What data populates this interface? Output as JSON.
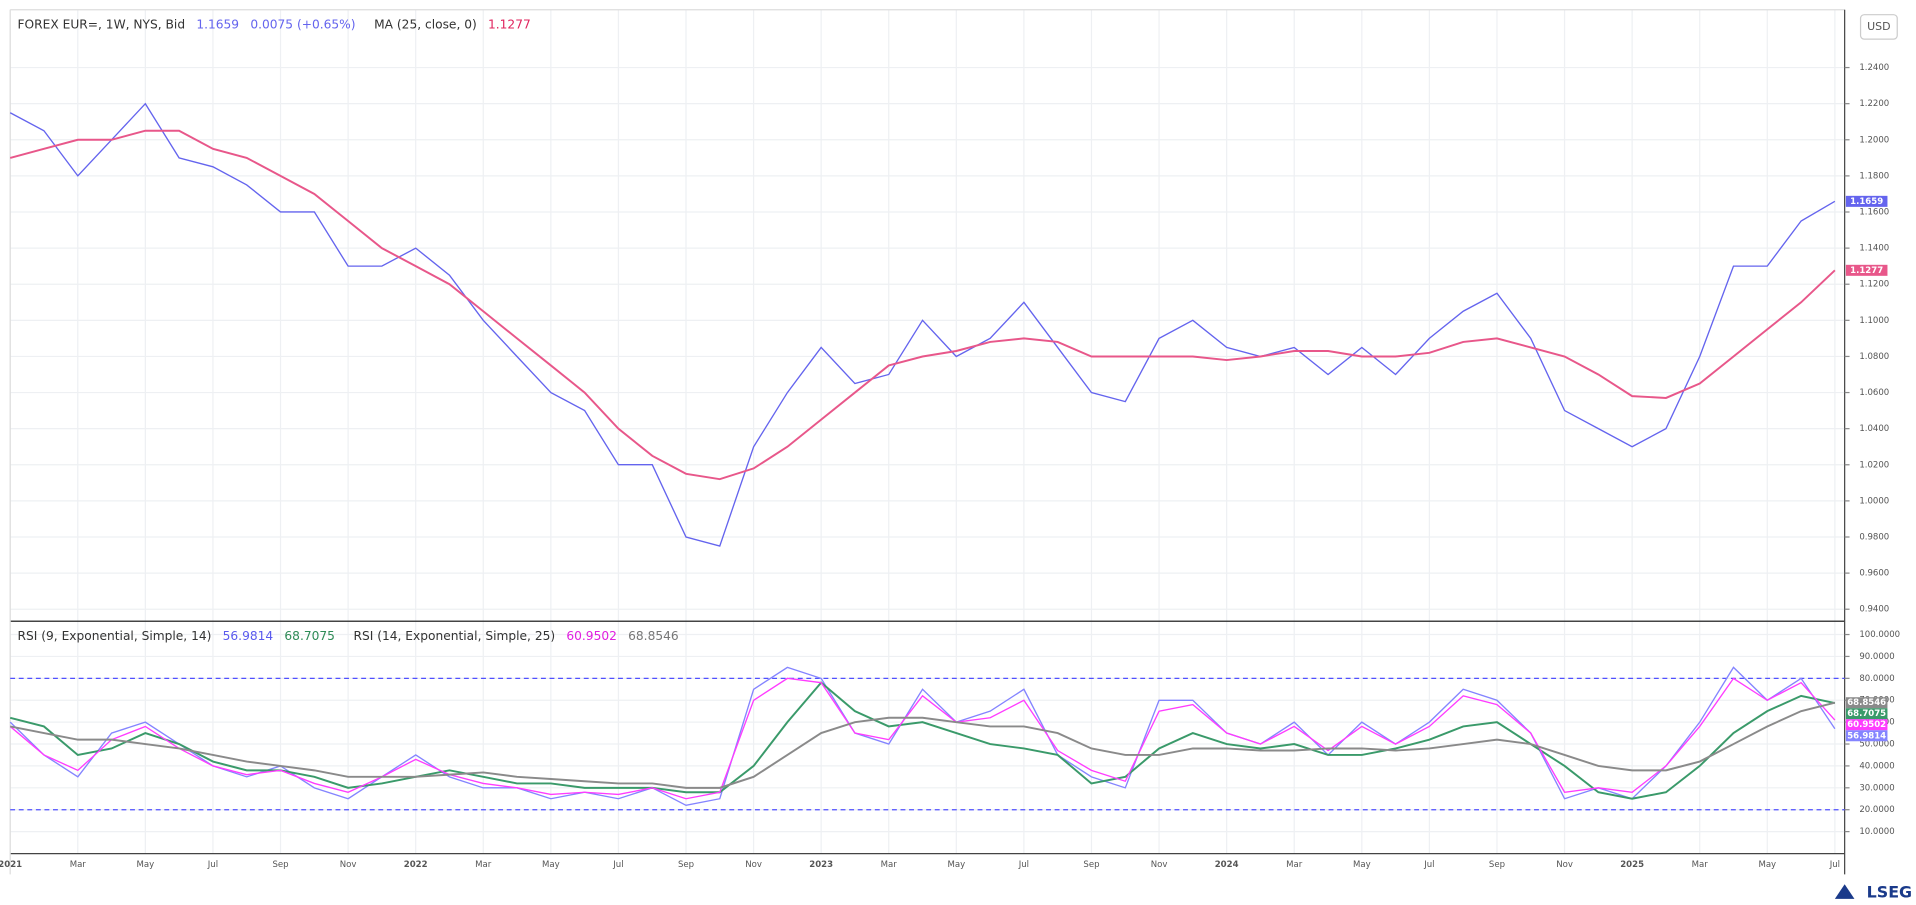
{
  "currency_button": "USD",
  "logo": "LSEG",
  "chart_data": [
    {
      "type": "line",
      "change_label": "0.0075 (+0.65%)",
      "series": [
        {
          "name": "FOREX EUR=, 1W, NYS, Bid",
          "color": "#6464ee",
          "values": [
            1.215,
            1.205,
            1.18,
            1.2,
            1.22,
            1.19,
            1.185,
            1.175,
            1.16,
            1.16,
            1.13,
            1.13,
            1.14,
            1.125,
            1.1,
            1.08,
            1.06,
            1.05,
            1.02,
            1.02,
            0.98,
            0.975,
            1.03,
            1.06,
            1.085,
            1.065,
            1.07,
            1.1,
            1.08,
            1.09,
            1.11,
            1.085,
            1.06,
            1.055,
            1.09,
            1.1,
            1.085,
            1.08,
            1.085,
            1.07,
            1.085,
            1.07,
            1.09,
            1.105,
            1.115,
            1.09,
            1.05,
            1.04,
            1.03,
            1.04,
            1.08,
            1.13,
            1.13,
            1.155,
            1.1659
          ]
        },
        {
          "name": "MA (25, close, 0)",
          "color": "#e8578a",
          "values": [
            1.19,
            1.195,
            1.2,
            1.2,
            1.205,
            1.205,
            1.195,
            1.19,
            1.18,
            1.17,
            1.155,
            1.14,
            1.13,
            1.12,
            1.105,
            1.09,
            1.075,
            1.06,
            1.04,
            1.025,
            1.015,
            1.012,
            1.018,
            1.03,
            1.045,
            1.06,
            1.075,
            1.08,
            1.083,
            1.088,
            1.09,
            1.088,
            1.08,
            1.08,
            1.08,
            1.08,
            1.078,
            1.08,
            1.083,
            1.083,
            1.08,
            1.08,
            1.082,
            1.088,
            1.09,
            1.085,
            1.08,
            1.07,
            1.058,
            1.057,
            1.065,
            1.08,
            1.095,
            1.11,
            1.1277
          ]
        }
      ],
      "ylim": [
        0.934,
        1.272
      ],
      "yticks": [
        {
          "value": 0.94,
          "label": "0.9400"
        },
        {
          "value": 0.96,
          "label": "0.9600"
        },
        {
          "value": 0.98,
          "label": "0.9800"
        },
        {
          "value": 1.0,
          "label": "1.0000"
        },
        {
          "value": 1.02,
          "label": "1.0200"
        },
        {
          "value": 1.04,
          "label": "1.0400"
        },
        {
          "value": 1.06,
          "label": "1.0600"
        },
        {
          "value": 1.08,
          "label": "1.0800"
        },
        {
          "value": 1.1,
          "label": "1.1000"
        },
        {
          "value": 1.12,
          "label": "1.1200"
        },
        {
          "value": 1.14,
          "label": "1.1400"
        },
        {
          "value": 1.16,
          "label": "1.1600"
        },
        {
          "value": 1.18,
          "label": "1.1800"
        },
        {
          "value": 1.2,
          "label": "1.2000"
        },
        {
          "value": 1.22,
          "label": "1.2200"
        },
        {
          "value": 1.24,
          "label": "1.2400"
        }
      ],
      "grid": true
    },
    {
      "type": "line",
      "categories": [
        "2021",
        null,
        "Mar",
        null,
        "May",
        null,
        "Jul",
        null,
        "Sep",
        null,
        "Nov",
        null,
        "2022",
        null,
        "Mar",
        null,
        "May",
        null,
        "Jul",
        null,
        "Sep",
        null,
        "Nov",
        null,
        "2023",
        null,
        "Mar",
        null,
        "May",
        null,
        "Jul",
        null,
        "Sep",
        null,
        "Nov",
        null,
        "2024",
        null,
        "Mar",
        null,
        "May",
        null,
        "Jul",
        null,
        "Sep",
        null,
        "Nov",
        null,
        "2025",
        null,
        "Mar",
        null,
        "May",
        null,
        "Jul"
      ],
      "series": [
        {
          "name": "RSI (9, Exponential, Simple, 14)",
          "color": "#8484ff",
          "values": [
            60,
            45,
            35,
            55,
            60,
            50,
            40,
            35,
            40,
            30,
            25,
            35,
            45,
            35,
            30,
            30,
            25,
            28,
            25,
            30,
            22,
            25,
            75,
            85,
            80,
            55,
            50,
            75,
            60,
            65,
            75,
            45,
            35,
            30,
            70,
            70,
            55,
            50,
            60,
            45,
            60,
            50,
            60,
            75,
            70,
            55,
            25,
            30,
            25,
            40,
            60,
            85,
            70,
            80,
            56.9814
          ]
        },
        {
          "color": "#3a9a6a",
          "values": [
            62,
            58,
            45,
            48,
            55,
            50,
            42,
            38,
            38,
            35,
            30,
            32,
            35,
            38,
            35,
            32,
            32,
            30,
            30,
            30,
            28,
            28,
            40,
            60,
            78,
            65,
            58,
            60,
            55,
            50,
            48,
            45,
            32,
            35,
            48,
            55,
            50,
            48,
            50,
            45,
            45,
            48,
            52,
            58,
            60,
            50,
            40,
            28,
            25,
            28,
            40,
            55,
            65,
            72,
            68.7075
          ]
        },
        {
          "name": "RSI (14, Exponential, Simple, 25)",
          "color": "#ff3cff",
          "values": [
            58,
            45,
            38,
            52,
            58,
            48,
            40,
            36,
            38,
            32,
            28,
            35,
            43,
            36,
            32,
            30,
            27,
            28,
            27,
            30,
            25,
            28,
            70,
            80,
            78,
            55,
            52,
            72,
            60,
            62,
            70,
            47,
            38,
            33,
            65,
            68,
            55,
            50,
            58,
            47,
            58,
            50,
            58,
            72,
            68,
            55,
            28,
            30,
            28,
            40,
            58,
            80,
            70,
            78,
            60.9502
          ]
        },
        {
          "color": "#8a8a8a",
          "values": [
            58,
            55,
            52,
            52,
            50,
            48,
            45,
            42,
            40,
            38,
            35,
            35,
            35,
            36,
            37,
            35,
            34,
            33,
            32,
            32,
            30,
            30,
            35,
            45,
            55,
            60,
            62,
            62,
            60,
            58,
            58,
            55,
            48,
            45,
            45,
            48,
            48,
            47,
            47,
            48,
            48,
            47,
            48,
            50,
            52,
            50,
            45,
            40,
            38,
            38,
            42,
            50,
            58,
            65,
            68.8546
          ]
        }
      ],
      "ylim": [
        0.5,
        105.5
      ],
      "yticks": [
        {
          "value": 10,
          "label": "10.0000"
        },
        {
          "value": 20,
          "label": "20.0000"
        },
        {
          "value": 30,
          "label": "30.0000"
        },
        {
          "value": 40,
          "label": "40.0000"
        },
        {
          "value": 50,
          "label": "50.0000"
        },
        {
          "value": 60,
          "label": "60.0000"
        },
        {
          "value": 70,
          "label": "70.0000"
        },
        {
          "value": 80,
          "label": "80.0000"
        },
        {
          "value": 90,
          "label": "90.0000"
        },
        {
          "value": 100,
          "label": "100.0000"
        }
      ],
      "hlines": [
        80,
        20
      ],
      "grid": true
    }
  ]
}
